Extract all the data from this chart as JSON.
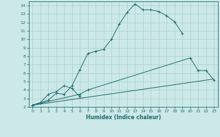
{
  "xlabel": "Humidex (Indice chaleur)",
  "bg_color": "#cce8e8",
  "line_color": "#1e6b6b",
  "grid_color": "#aacfcf",
  "xlim": [
    -0.5,
    23.5
  ],
  "ylim": [
    2,
    14.5
  ],
  "xticks": [
    0,
    1,
    2,
    3,
    4,
    5,
    6,
    7,
    8,
    9,
    10,
    11,
    12,
    13,
    14,
    15,
    16,
    17,
    18,
    19,
    20,
    21,
    22,
    23
  ],
  "yticks": [
    2,
    3,
    4,
    5,
    6,
    7,
    8,
    9,
    10,
    11,
    12,
    13,
    14
  ],
  "lines": [
    {
      "x": [
        0,
        1,
        2,
        3,
        4,
        5,
        6,
        7,
        8,
        9,
        10,
        11,
        12,
        13,
        14,
        15,
        16,
        17,
        18,
        19
      ],
      "y": [
        2.2,
        2.5,
        2.8,
        3.6,
        3.5,
        4.5,
        6.4,
        8.3,
        8.6,
        8.8,
        10.0,
        11.8,
        13.2,
        14.2,
        13.5,
        13.5,
        13.3,
        12.8,
        12.1,
        10.7
      ],
      "marker": "+"
    },
    {
      "x": [
        0,
        1,
        2,
        3,
        4,
        5,
        6
      ],
      "y": [
        2.2,
        2.5,
        3.5,
        3.8,
        4.5,
        4.2,
        3.2
      ],
      "marker": "+"
    },
    {
      "x": [
        0,
        6,
        7,
        20,
        21,
        22,
        23
      ],
      "y": [
        2.2,
        3.5,
        4.0,
        7.8,
        6.3,
        6.3,
        5.2
      ],
      "marker": "+"
    },
    {
      "x": [
        0,
        23
      ],
      "y": [
        2.2,
        5.3
      ],
      "marker": null
    }
  ]
}
